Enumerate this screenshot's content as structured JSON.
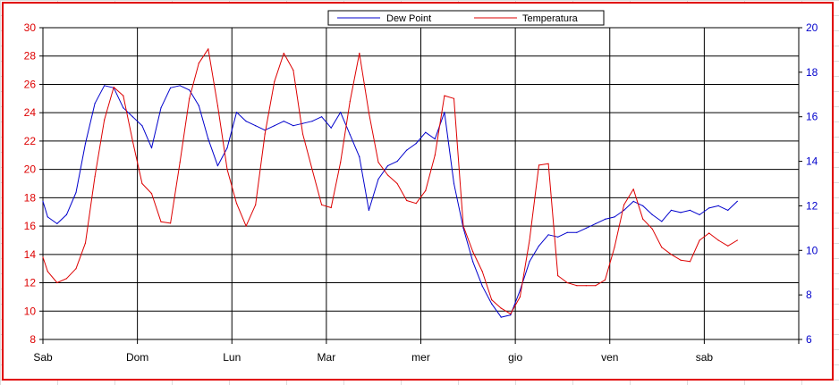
{
  "chart_data": {
    "type": "line",
    "title": "",
    "xlabel": "",
    "ylabel_left": "",
    "ylabel_right": "",
    "x_tick_labels": [
      "Sab",
      "Dom",
      "Lun",
      "Mar",
      "mer",
      "gio",
      "ven",
      "sab"
    ],
    "y_left_ticks": [
      "30",
      "28",
      "26",
      "24",
      "22",
      "20",
      "18",
      "16",
      "14",
      "12",
      "10",
      "8"
    ],
    "y_right_ticks": [
      "20",
      "18",
      "16",
      "14",
      "12",
      "10",
      "8",
      "6"
    ],
    "ylim_left": [
      8,
      30
    ],
    "ylim_right": [
      6,
      20
    ],
    "xlim_days": [
      0,
      8
    ],
    "grid": true,
    "legend_position": "top-center",
    "colors": {
      "dew_point": "#0000cc",
      "temperatura": "#dd0000",
      "left_axis": "#dd0000",
      "right_axis": "#0000cc",
      "frame": "#e00000"
    },
    "series": [
      {
        "name": "Dew Point",
        "axis": "right",
        "x": [
          0,
          0.05,
          0.15,
          0.25,
          0.35,
          0.45,
          0.55,
          0.65,
          0.75,
          0.85,
          0.95,
          1.05,
          1.15,
          1.25,
          1.35,
          1.45,
          1.55,
          1.65,
          1.75,
          1.85,
          1.95,
          2.05,
          2.15,
          2.25,
          2.35,
          2.45,
          2.55,
          2.65,
          2.75,
          2.85,
          2.95,
          3.05,
          3.15,
          3.25,
          3.35,
          3.45,
          3.55,
          3.65,
          3.75,
          3.85,
          3.95,
          4.05,
          4.15,
          4.25,
          4.35,
          4.45,
          4.55,
          4.65,
          4.75,
          4.85,
          4.95,
          5.05,
          5.15,
          5.25,
          5.35,
          5.45,
          5.55,
          5.65,
          5.75,
          5.85,
          5.95,
          6.05,
          6.15,
          6.25,
          6.35,
          6.45,
          6.55,
          6.65,
          6.75,
          6.85,
          6.95,
          7.05,
          7.15,
          7.25,
          7.35
        ],
        "values": [
          12.2,
          11.5,
          11.2,
          11.6,
          12.6,
          14.8,
          16.6,
          17.4,
          17.3,
          16.4,
          16.0,
          15.6,
          14.6,
          16.4,
          17.3,
          17.4,
          17.2,
          16.5,
          15.0,
          13.8,
          14.6,
          16.2,
          15.8,
          15.6,
          15.4,
          15.6,
          15.8,
          15.6,
          15.7,
          15.8,
          16.0,
          15.5,
          16.2,
          15.2,
          14.2,
          11.8,
          13.2,
          13.8,
          14.0,
          14.5,
          14.8,
          15.3,
          15.0,
          16.2,
          13.0,
          11.0,
          9.5,
          8.4,
          7.6,
          7.0,
          7.1,
          8.2,
          9.5,
          10.2,
          10.7,
          10.6,
          10.8,
          10.8,
          11.0,
          11.2,
          11.4,
          11.5,
          11.8,
          12.2,
          12.0,
          11.6,
          11.3,
          11.8,
          11.7,
          11.8,
          11.6,
          11.9,
          12.0,
          11.8,
          12.2
        ]
      },
      {
        "name": "Temperatura",
        "axis": "left",
        "x": [
          0,
          0.05,
          0.15,
          0.25,
          0.35,
          0.45,
          0.55,
          0.65,
          0.75,
          0.85,
          0.95,
          1.05,
          1.15,
          1.25,
          1.35,
          1.45,
          1.55,
          1.65,
          1.75,
          1.85,
          1.95,
          2.05,
          2.15,
          2.25,
          2.35,
          2.45,
          2.55,
          2.65,
          2.75,
          2.85,
          2.95,
          3.05,
          3.15,
          3.25,
          3.35,
          3.45,
          3.55,
          3.65,
          3.75,
          3.85,
          3.95,
          4.05,
          4.15,
          4.25,
          4.35,
          4.45,
          4.55,
          4.65,
          4.75,
          4.85,
          4.95,
          5.05,
          5.15,
          5.25,
          5.35,
          5.45,
          5.55,
          5.65,
          5.75,
          5.85,
          5.95,
          6.05,
          6.15,
          6.25,
          6.35,
          6.45,
          6.55,
          6.65,
          6.75,
          6.85,
          6.95,
          7.05,
          7.15,
          7.25,
          7.35
        ],
        "values": [
          13.8,
          12.8,
          12.0,
          12.3,
          13.0,
          14.8,
          19.5,
          23.5,
          25.8,
          25.2,
          22.0,
          19.0,
          18.3,
          16.3,
          16.2,
          20.5,
          25.0,
          27.5,
          28.5,
          24.5,
          20.0,
          17.6,
          16.0,
          17.5,
          22.5,
          26.2,
          28.2,
          27.0,
          22.5,
          20.0,
          17.5,
          17.3,
          20.5,
          24.8,
          28.2,
          24.0,
          20.5,
          19.6,
          19.0,
          17.8,
          17.6,
          18.5,
          21.0,
          25.2,
          25.0,
          16.0,
          14.2,
          12.8,
          10.8,
          10.2,
          9.8,
          11.0,
          15.0,
          20.3,
          20.4,
          12.5,
          12.0,
          11.8,
          11.8,
          11.8,
          12.2,
          14.5,
          17.5,
          18.6,
          16.5,
          15.8,
          14.5,
          14.0,
          13.6,
          13.5,
          15.0,
          15.5,
          15.0,
          14.6,
          15.0
        ]
      }
    ]
  }
}
